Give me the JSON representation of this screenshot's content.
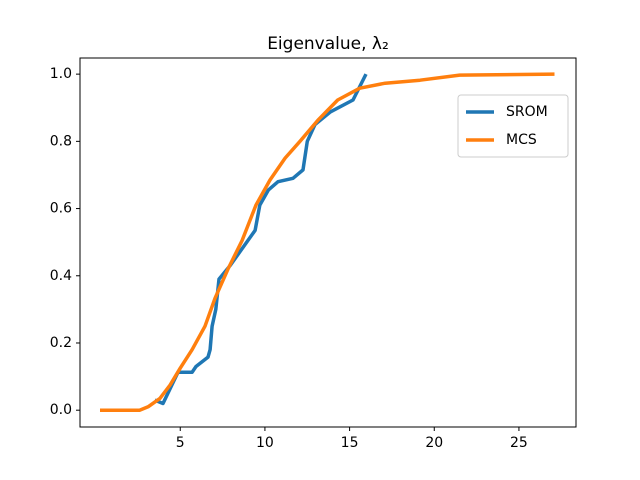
{
  "chart_data": {
    "type": "line",
    "title": "Eigenvalue, λ₂",
    "series": [
      {
        "name": "SROM",
        "color": "#1f77b4",
        "x": [
          3.5,
          3.98,
          4.87,
          5.7,
          5.93,
          6.64,
          6.76,
          6.88,
          7.1,
          7.29,
          7.94,
          9.42,
          9.7,
          10.2,
          10.77,
          11.66,
          12.25,
          12.5,
          12.96,
          13.85,
          15.2,
          15.97
        ],
        "values": [
          0.03,
          0.02,
          0.113,
          0.113,
          0.13,
          0.158,
          0.18,
          0.25,
          0.3,
          0.39,
          0.43,
          0.535,
          0.61,
          0.655,
          0.68,
          0.69,
          0.715,
          0.8,
          0.85,
          0.887,
          0.923,
          1.0
        ]
      },
      {
        "name": "MCS",
        "color": "#ff7f0e",
        "x": [
          0.26,
          2.6,
          3.1,
          3.8,
          4.4,
          5.0,
          5.7,
          6.46,
          7.05,
          7.82,
          8.65,
          9.47,
          10.3,
          11.19,
          12.07,
          13.13,
          14.3,
          15.6,
          17.1,
          19.16,
          21.5,
          27.1
        ],
        "values": [
          0.0,
          0.0,
          0.01,
          0.035,
          0.075,
          0.125,
          0.18,
          0.25,
          0.333,
          0.42,
          0.505,
          0.61,
          0.685,
          0.75,
          0.8,
          0.863,
          0.923,
          0.958,
          0.973,
          0.982,
          0.997,
          1.0
        ]
      }
    ],
    "xlim": [
      -0.92,
      28.37
    ],
    "ylim": [
      -0.05,
      1.048
    ],
    "xticks": [
      5,
      10,
      15,
      20,
      25
    ],
    "yticks": [
      {
        "value": 0,
        "label": "0.0"
      },
      {
        "value": 0.2,
        "label": "0.2"
      },
      {
        "value": 0.4,
        "label": "0.4"
      },
      {
        "value": 0.6,
        "label": "0.6"
      },
      {
        "value": 0.8,
        "label": "0.8"
      },
      {
        "value": 1,
        "label": "1.0"
      }
    ],
    "legend": "upper right"
  }
}
